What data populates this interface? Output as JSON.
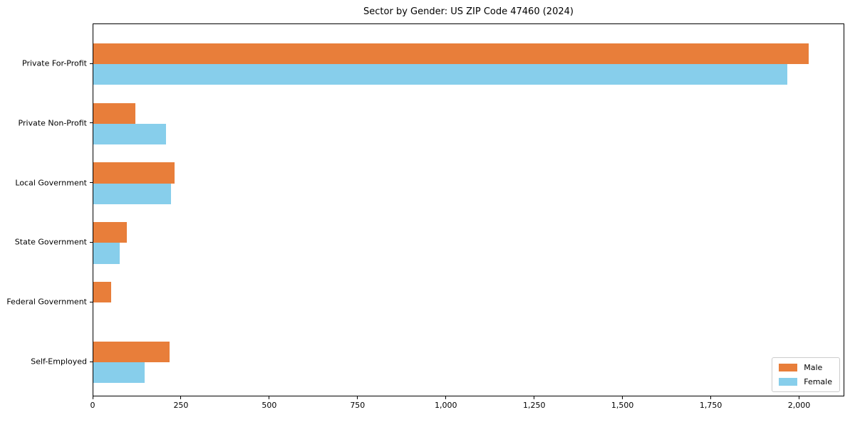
{
  "chart_data": {
    "type": "bar",
    "orientation": "horizontal",
    "title": "Sector by Gender: US ZIP Code 47460 (2024)",
    "xlabel": "",
    "ylabel": "",
    "grid": false,
    "categories": [
      "Private For-Profit",
      "Private Non-Profit",
      "Local Government",
      "State Government",
      "Federal Government",
      "Self-Employed"
    ],
    "series": [
      {
        "name": "Male",
        "color": "#e87e3a",
        "values": [
          2025,
          120,
          230,
          95,
          50,
          215
        ]
      },
      {
        "name": "Female",
        "color": "#87ceeb",
        "values": [
          1965,
          205,
          220,
          75,
          0,
          145
        ]
      }
    ],
    "xlim": [
      0,
      2128
    ],
    "xticks": [
      {
        "value": 0,
        "label": "0"
      },
      {
        "value": 250,
        "label": "250"
      },
      {
        "value": 500,
        "label": "500"
      },
      {
        "value": 750,
        "label": "750"
      },
      {
        "value": 1000,
        "label": "1,000"
      },
      {
        "value": 1250,
        "label": "1,250"
      },
      {
        "value": 1500,
        "label": "1,500"
      },
      {
        "value": 1750,
        "label": "1,750"
      },
      {
        "value": 2000,
        "label": "2,000"
      }
    ],
    "legend": {
      "position": "lower right",
      "entries": [
        "Male",
        "Female"
      ]
    }
  }
}
